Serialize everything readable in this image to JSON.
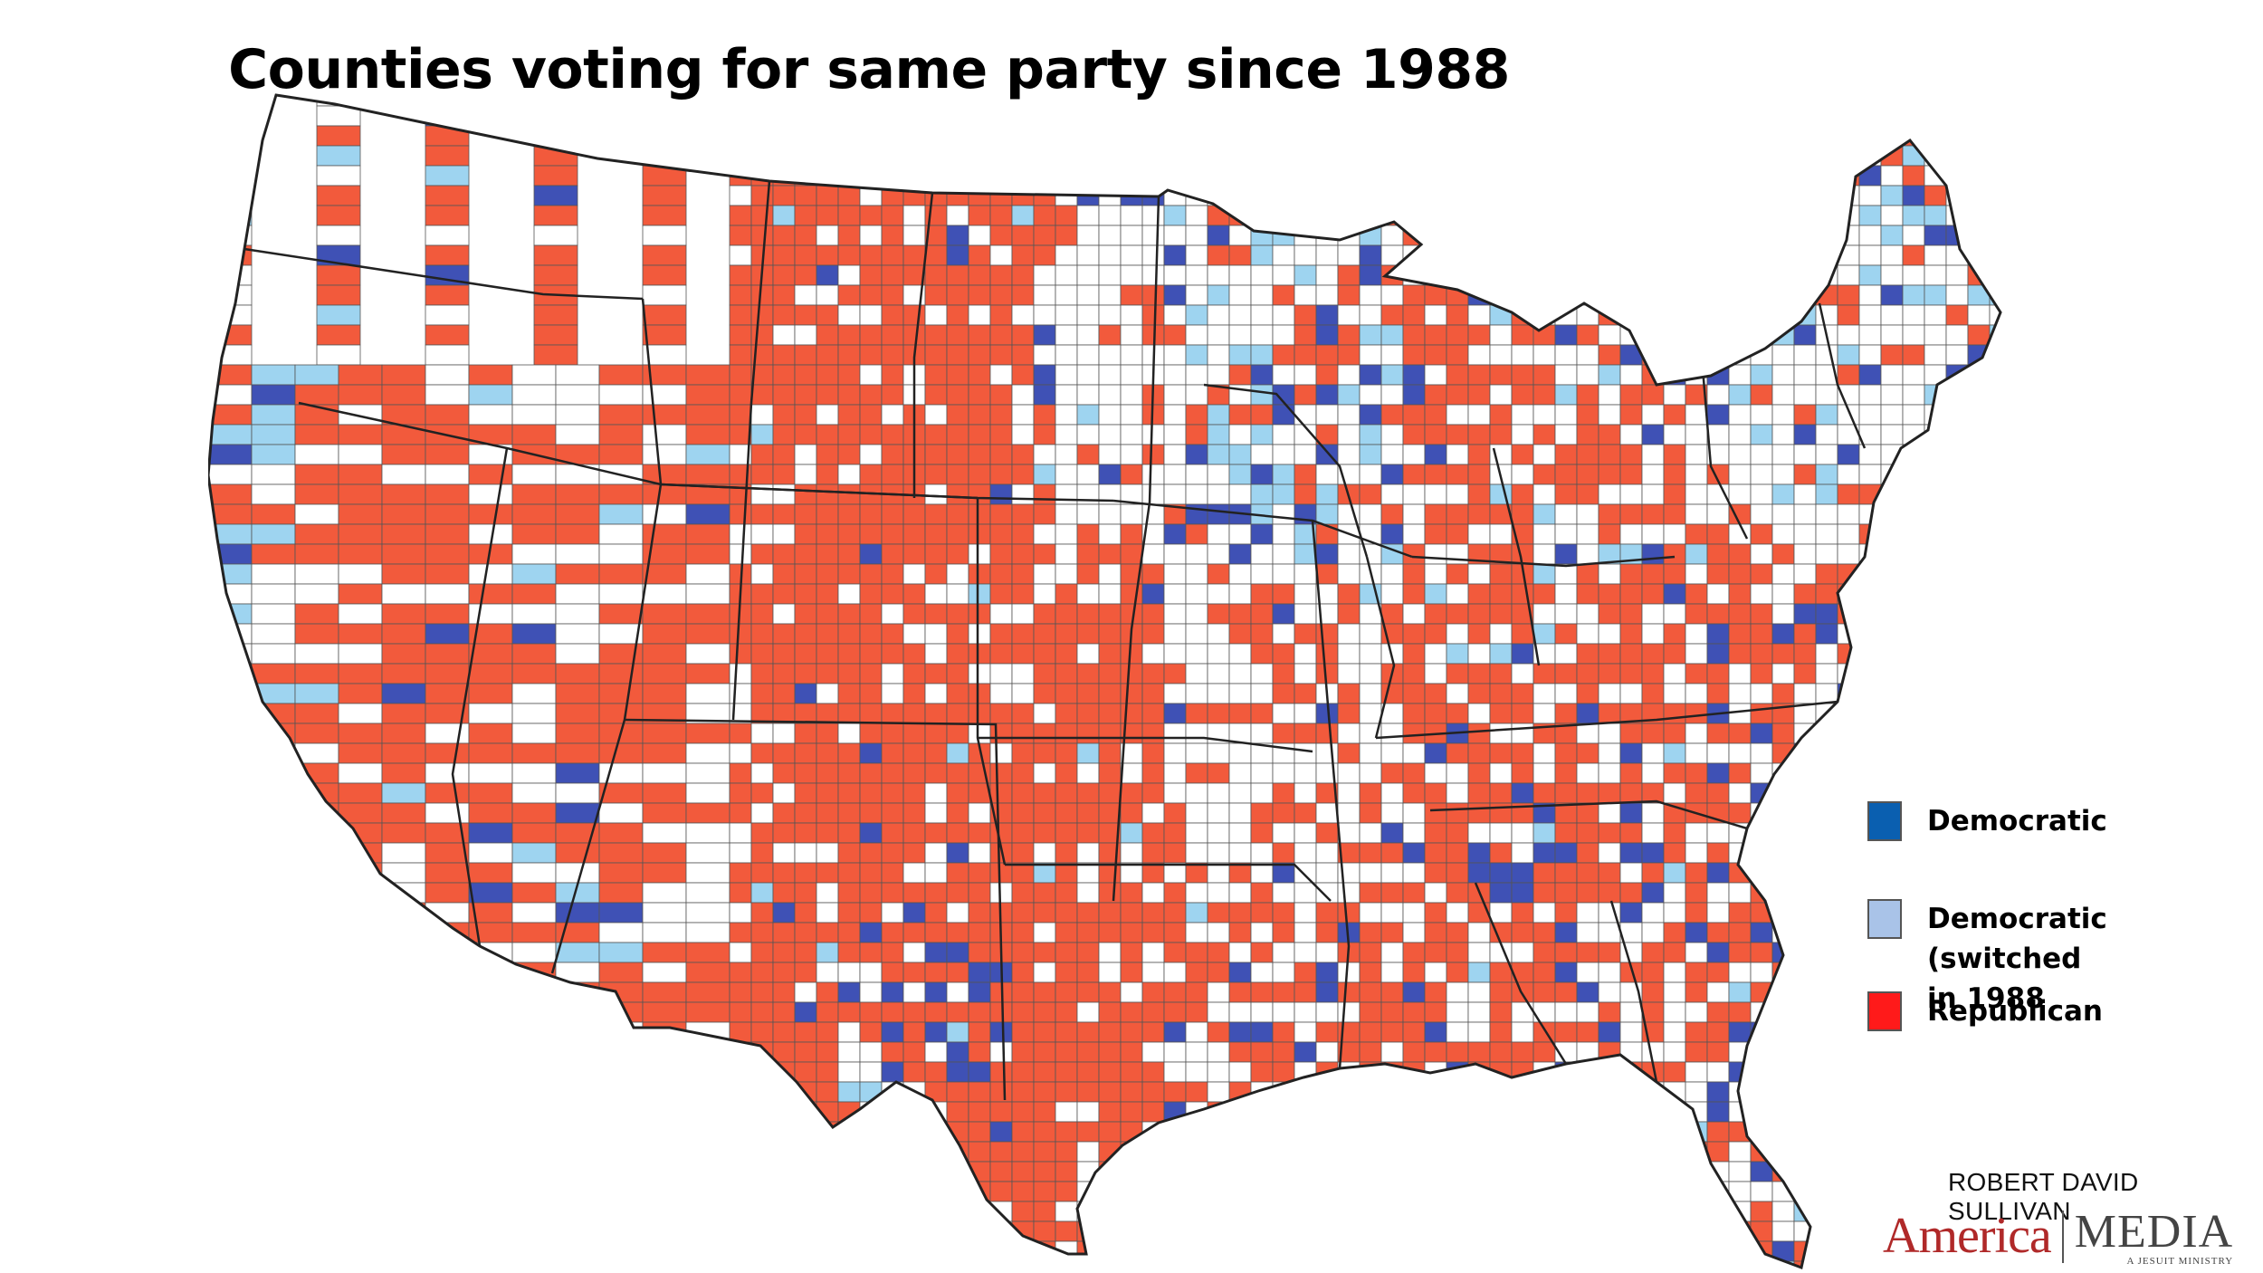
{
  "title": "Counties voting for same party since 1988",
  "colors": {
    "democratic": "#3f51b5",
    "democratic_switched": "#9ed4f0",
    "republican": "#f25a3c",
    "other": "#ffffff",
    "border": "#222222"
  },
  "legend": [
    {
      "label": "Democratic",
      "swatch_color": "#0a5fb0",
      "key": "democratic"
    },
    {
      "label": "Democratic (switched",
      "label_line2": "in 1988",
      "swatch_color": "#a9c3e8",
      "key": "democratic_switched"
    },
    {
      "label": "Republican",
      "swatch_color": "#ff1a1a",
      "key": "republican"
    }
  ],
  "credit": {
    "author": "ROBERT DAVID SULLIVAN",
    "logo_left": "America",
    "logo_right": "MEDIA",
    "logo_tagline": "A JESUIT MINISTRY"
  }
}
